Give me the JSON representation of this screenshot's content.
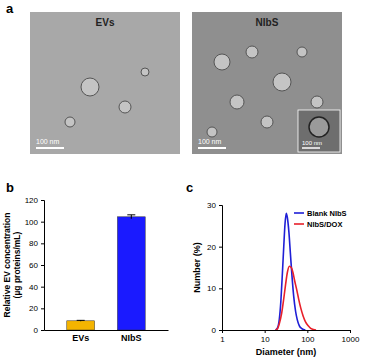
{
  "images": {
    "title": "a",
    "items": [
      {
        "label": "EVs",
        "scale_bar": "100 nm"
      },
      {
        "label": "NIbS",
        "scale_bar": "100 nm",
        "inset_scale_bar": "100 nm"
      }
    ]
  },
  "chart_data": [
    {
      "type": "bar",
      "title": "b",
      "categories": [
        "EVs",
        "NIbS"
      ],
      "values": [
        8.5,
        104.5
      ],
      "errors": [
        0.4,
        1.8
      ],
      "colors": [
        "#f4b400",
        "#1a1aff"
      ],
      "ylabel": [
        "Relative EV concentration",
        "(µg proteins/mL)"
      ],
      "ylim": [
        0,
        120
      ],
      "yticks": [
        0,
        20,
        40,
        60,
        80,
        100,
        120
      ]
    },
    {
      "type": "line",
      "title": "c",
      "xlabel": "Diameter (nm)",
      "ylabel": "Number (%)",
      "log": "x",
      "xlim": [
        1,
        1000
      ],
      "xticks": [
        1,
        10,
        100,
        1000
      ],
      "ylim": [
        0,
        30
      ],
      "yticks": [
        0,
        10,
        20,
        30
      ],
      "legend": "upper right",
      "series": [
        {
          "name": "Blank NIbS",
          "color": "#1f1fd6",
          "x": [
            18,
            20,
            22,
            24,
            26,
            28,
            30,
            32,
            34,
            37,
            40,
            44,
            48,
            53,
            58,
            65,
            75,
            90
          ],
          "values": [
            0,
            0.5,
            2.5,
            7,
            13.5,
            20,
            25.5,
            28,
            27,
            23.5,
            18.5,
            12.5,
            8,
            4.5,
            2.5,
            1,
            0.3,
            0
          ]
        },
        {
          "name": "NIbS/DOX",
          "color": "#e8202a",
          "x": [
            18,
            20,
            22,
            25,
            28,
            31,
            34,
            38,
            42,
            46,
            50,
            56,
            63,
            70,
            80,
            90,
            105,
            120,
            140,
            160
          ],
          "values": [
            0,
            0.3,
            1.5,
            4,
            7.5,
            11,
            13.8,
            15.3,
            15,
            13.8,
            12,
            9.8,
            7.3,
            5.3,
            3.3,
            2,
            1,
            0.4,
            0.1,
            0
          ]
        }
      ]
    }
  ]
}
